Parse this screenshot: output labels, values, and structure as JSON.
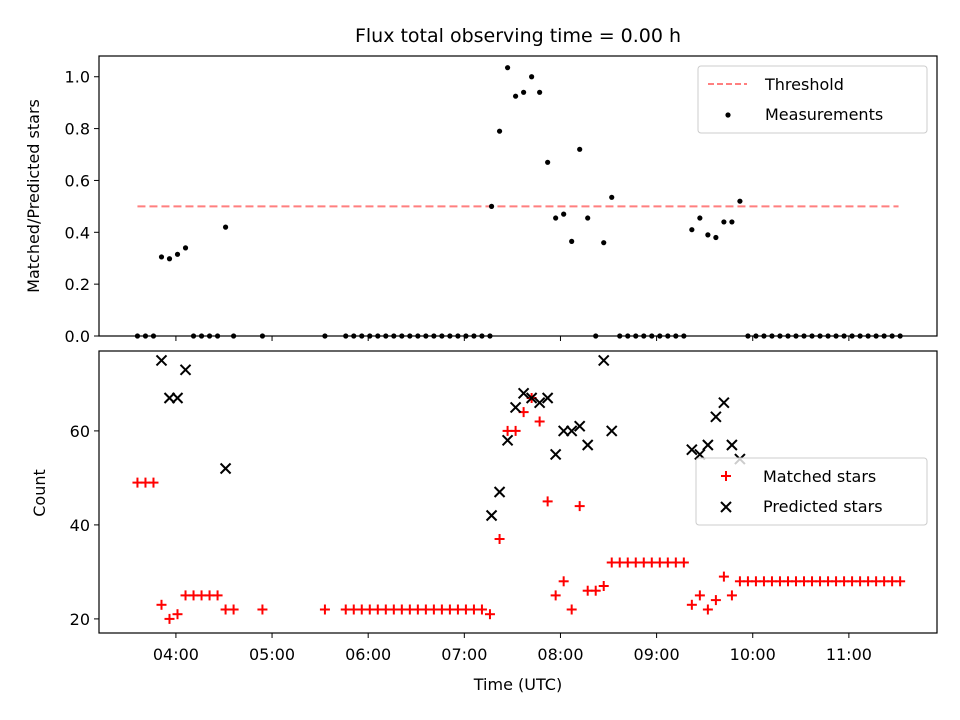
{
  "chart_data": [
    {
      "type": "scatter",
      "panel": "top",
      "title": "Flux total observing time = 0.00 h",
      "xlabel": "",
      "ylabel": "Matched/Predicted stars",
      "xlim": [
        "03:12",
        "11:55"
      ],
      "ylim": [
        0,
        1.08
      ],
      "yticks": [
        "0.0",
        "0.2",
        "0.4",
        "0.6",
        "0.8",
        "1.0"
      ],
      "grid": false,
      "legend_placement": "top-right",
      "threshold": {
        "name": "Threshold",
        "value": 0.5,
        "x": [
          "03:36",
          "11:31"
        ],
        "color": "#ff7f7f",
        "style": "dashed"
      },
      "series": [
        {
          "name": "Measurements",
          "color": "#000000",
          "marker": "dot",
          "points": [
            [
              "03:36",
              0
            ],
            [
              "03:41",
              0
            ],
            [
              "03:46",
              0
            ],
            [
              "03:51",
              0.305
            ],
            [
              "03:56",
              0.298
            ],
            [
              "04:01",
              0.315
            ],
            [
              "04:06",
              0.34
            ],
            [
              "04:11",
              0
            ],
            [
              "04:16",
              0
            ],
            [
              "04:21",
              0
            ],
            [
              "04:26",
              0
            ],
            [
              "04:31",
              0.42
            ],
            [
              "04:36",
              0
            ],
            [
              "04:54",
              0
            ],
            [
              "05:33",
              0
            ],
            [
              "05:46",
              0
            ],
            [
              "05:51",
              0
            ],
            [
              "05:56",
              0
            ],
            [
              "06:01",
              0
            ],
            [
              "06:06",
              0
            ],
            [
              "06:11",
              0
            ],
            [
              "06:16",
              0
            ],
            [
              "06:21",
              0
            ],
            [
              "06:26",
              0
            ],
            [
              "06:31",
              0
            ],
            [
              "06:36",
              0
            ],
            [
              "06:41",
              0
            ],
            [
              "06:46",
              0
            ],
            [
              "06:51",
              0
            ],
            [
              "06:56",
              0
            ],
            [
              "07:01",
              0
            ],
            [
              "07:06",
              0
            ],
            [
              "07:11",
              0
            ],
            [
              "07:16",
              0
            ],
            [
              "07:17",
              0.5
            ],
            [
              "07:22",
              0.79
            ],
            [
              "07:27",
              1.035
            ],
            [
              "07:32",
              0.925
            ],
            [
              "07:37",
              0.94
            ],
            [
              "07:42",
              1.0
            ],
            [
              "07:47",
              0.94
            ],
            [
              "07:52",
              0.67
            ],
            [
              "07:57",
              0.455
            ],
            [
              "08:02",
              0.47
            ],
            [
              "08:07",
              0.365
            ],
            [
              "08:12",
              0.72
            ],
            [
              "08:17",
              0.455
            ],
            [
              "08:22",
              0
            ],
            [
              "08:27",
              0.36
            ],
            [
              "08:32",
              0.535
            ],
            [
              "08:37",
              0
            ],
            [
              "08:42",
              0
            ],
            [
              "08:47",
              0
            ],
            [
              "08:52",
              0
            ],
            [
              "08:57",
              0
            ],
            [
              "09:02",
              0
            ],
            [
              "09:07",
              0
            ],
            [
              "09:12",
              0
            ],
            [
              "09:17",
              0
            ],
            [
              "09:22",
              0.41
            ],
            [
              "09:27",
              0.455
            ],
            [
              "09:32",
              0.39
            ],
            [
              "09:37",
              0.38
            ],
            [
              "09:42",
              0.44
            ],
            [
              "09:47",
              0.44
            ],
            [
              "09:52",
              0.52
            ],
            [
              "09:57",
              0
            ],
            [
              "10:02",
              0
            ],
            [
              "10:07",
              0
            ],
            [
              "10:12",
              0
            ],
            [
              "10:17",
              0
            ],
            [
              "10:22",
              0
            ],
            [
              "10:27",
              0
            ],
            [
              "10:32",
              0
            ],
            [
              "10:37",
              0
            ],
            [
              "10:42",
              0
            ],
            [
              "10:47",
              0
            ],
            [
              "10:52",
              0
            ],
            [
              "10:57",
              0
            ],
            [
              "11:02",
              0
            ],
            [
              "11:07",
              0
            ],
            [
              "11:12",
              0
            ],
            [
              "11:17",
              0
            ],
            [
              "11:22",
              0
            ],
            [
              "11:27",
              0
            ],
            [
              "11:32",
              0
            ]
          ]
        }
      ]
    },
    {
      "type": "scatter",
      "panel": "bottom",
      "title": "",
      "xlabel": "Time (UTC)",
      "ylabel": "Count",
      "xlim": [
        "03:12",
        "11:55"
      ],
      "ylim": [
        17,
        77
      ],
      "yticks": [
        "20",
        "40",
        "60"
      ],
      "xticks": [
        "04:00",
        "05:00",
        "06:00",
        "07:00",
        "08:00",
        "09:00",
        "10:00",
        "11:00"
      ],
      "grid": false,
      "legend_placement": "center-right",
      "series": [
        {
          "name": "Matched stars",
          "color": "#ff0000",
          "marker": "plus",
          "points": [
            [
              "03:36",
              49
            ],
            [
              "03:41",
              49
            ],
            [
              "03:46",
              49
            ],
            [
              "03:51",
              23
            ],
            [
              "03:56",
              20
            ],
            [
              "04:01",
              21
            ],
            [
              "04:06",
              25
            ],
            [
              "04:11",
              25
            ],
            [
              "04:16",
              25
            ],
            [
              "04:21",
              25
            ],
            [
              "04:26",
              25
            ],
            [
              "04:31",
              22
            ],
            [
              "04:36",
              22
            ],
            [
              "04:54",
              22
            ],
            [
              "05:33",
              22
            ],
            [
              "05:46",
              22
            ],
            [
              "05:51",
              22
            ],
            [
              "05:56",
              22
            ],
            [
              "06:01",
              22
            ],
            [
              "06:06",
              22
            ],
            [
              "06:11",
              22
            ],
            [
              "06:16",
              22
            ],
            [
              "06:21",
              22
            ],
            [
              "06:26",
              22
            ],
            [
              "06:31",
              22
            ],
            [
              "06:36",
              22
            ],
            [
              "06:41",
              22
            ],
            [
              "06:46",
              22
            ],
            [
              "06:51",
              22
            ],
            [
              "06:56",
              22
            ],
            [
              "07:01",
              22
            ],
            [
              "07:06",
              22
            ],
            [
              "07:11",
              22
            ],
            [
              "07:16",
              21
            ],
            [
              "07:22",
              37
            ],
            [
              "07:27",
              60
            ],
            [
              "07:32",
              60
            ],
            [
              "07:37",
              64
            ],
            [
              "07:42",
              67
            ],
            [
              "07:47",
              62
            ],
            [
              "07:52",
              45
            ],
            [
              "07:57",
              25
            ],
            [
              "08:02",
              28
            ],
            [
              "08:07",
              22
            ],
            [
              "08:12",
              44
            ],
            [
              "08:17",
              26
            ],
            [
              "08:22",
              26
            ],
            [
              "08:27",
              27
            ],
            [
              "08:32",
              32
            ],
            [
              "08:37",
              32
            ],
            [
              "08:42",
              32
            ],
            [
              "08:47",
              32
            ],
            [
              "08:52",
              32
            ],
            [
              "08:57",
              32
            ],
            [
              "09:02",
              32
            ],
            [
              "09:07",
              32
            ],
            [
              "09:12",
              32
            ],
            [
              "09:17",
              32
            ],
            [
              "09:22",
              23
            ],
            [
              "09:27",
              25
            ],
            [
              "09:32",
              22
            ],
            [
              "09:37",
              24
            ],
            [
              "09:42",
              29
            ],
            [
              "09:47",
              25
            ],
            [
              "09:52",
              28
            ],
            [
              "09:57",
              28
            ],
            [
              "10:02",
              28
            ],
            [
              "10:07",
              28
            ],
            [
              "10:12",
              28
            ],
            [
              "10:17",
              28
            ],
            [
              "10:22",
              28
            ],
            [
              "10:27",
              28
            ],
            [
              "10:32",
              28
            ],
            [
              "10:37",
              28
            ],
            [
              "10:42",
              28
            ],
            [
              "10:47",
              28
            ],
            [
              "10:52",
              28
            ],
            [
              "10:57",
              28
            ],
            [
              "11:02",
              28
            ],
            [
              "11:07",
              28
            ],
            [
              "11:12",
              28
            ],
            [
              "11:17",
              28
            ],
            [
              "11:22",
              28
            ],
            [
              "11:27",
              28
            ],
            [
              "11:32",
              28
            ]
          ]
        },
        {
          "name": "Predicted stars",
          "color": "#000000",
          "marker": "x",
          "points": [
            [
              "03:51",
              75
            ],
            [
              "03:56",
              67
            ],
            [
              "04:01",
              67
            ],
            [
              "04:06",
              73
            ],
            [
              "04:31",
              52
            ],
            [
              "07:17",
              42
            ],
            [
              "07:22",
              47
            ],
            [
              "07:27",
              58
            ],
            [
              "07:32",
              65
            ],
            [
              "07:37",
              68
            ],
            [
              "07:42",
              67
            ],
            [
              "07:47",
              66
            ],
            [
              "07:52",
              67
            ],
            [
              "07:57",
              55
            ],
            [
              "08:02",
              60
            ],
            [
              "08:07",
              60
            ],
            [
              "08:12",
              61
            ],
            [
              "08:17",
              57
            ],
            [
              "08:27",
              75
            ],
            [
              "08:32",
              60
            ],
            [
              "09:22",
              56
            ],
            [
              "09:27",
              55
            ],
            [
              "09:32",
              57
            ],
            [
              "09:37",
              63
            ],
            [
              "09:42",
              66
            ],
            [
              "09:47",
              57
            ],
            [
              "09:52",
              54
            ]
          ]
        }
      ]
    }
  ]
}
